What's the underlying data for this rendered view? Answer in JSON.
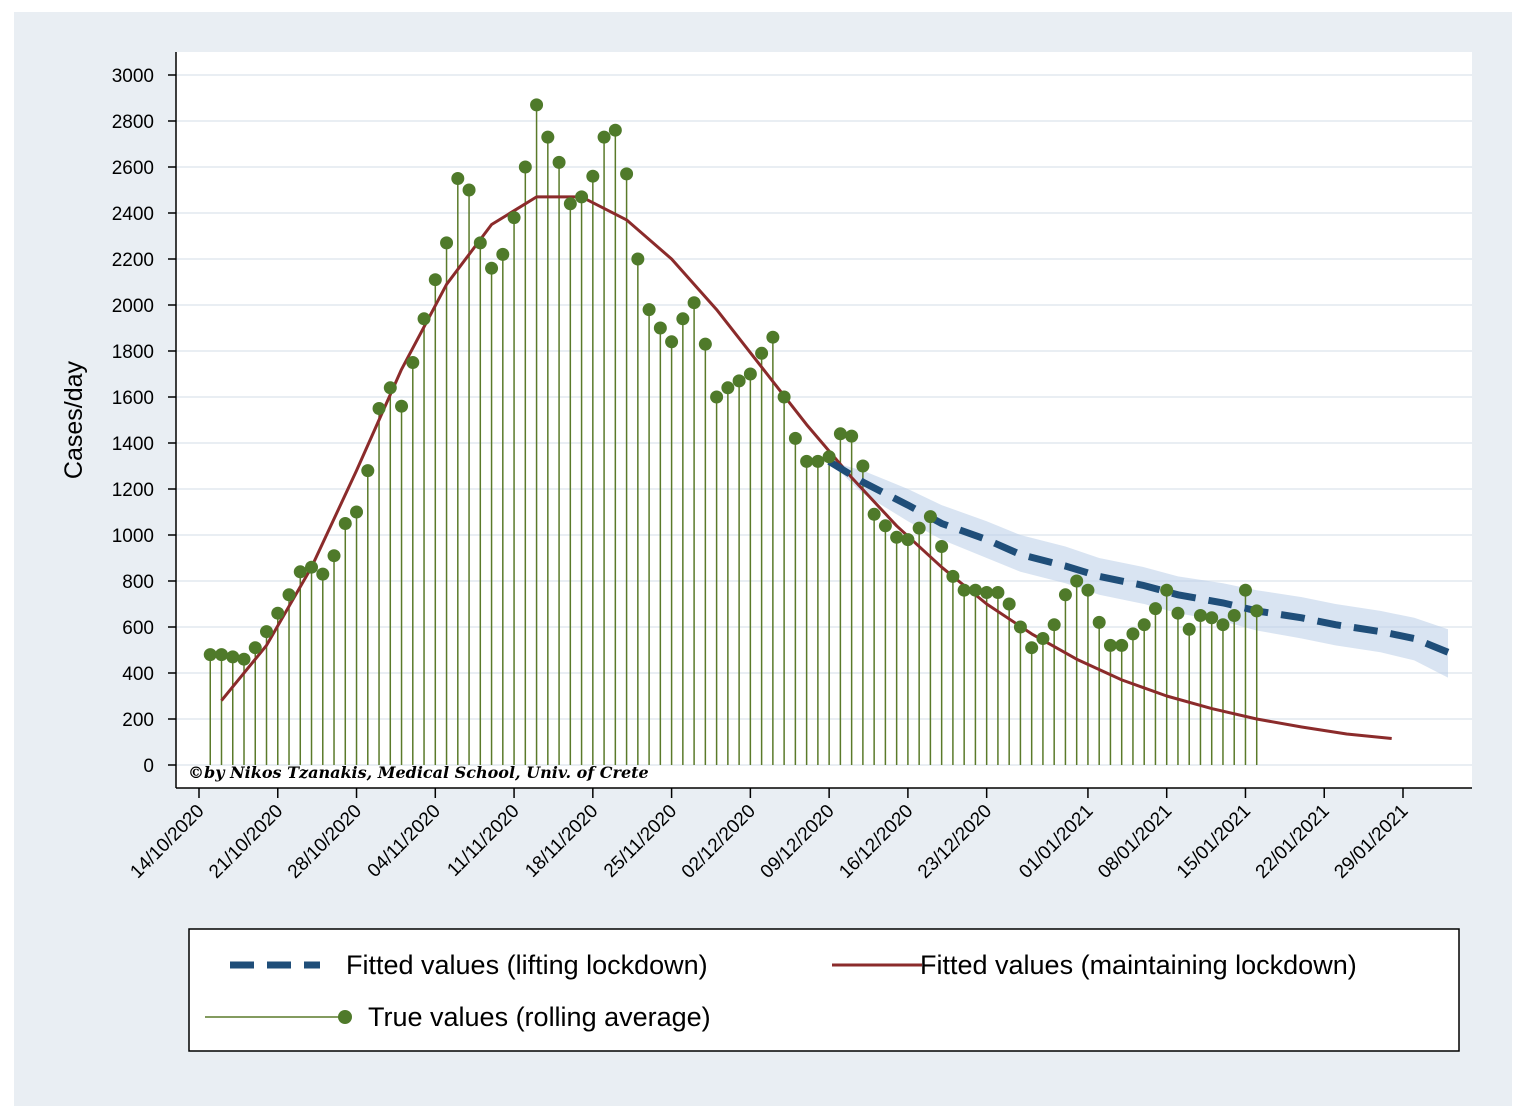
{
  "chart_data": {
    "type": "line",
    "title": "",
    "xlabel": "",
    "ylabel": "Cases/day",
    "ylim": [
      0,
      3000
    ],
    "yticks": [
      0,
      200,
      400,
      600,
      800,
      1000,
      1200,
      1400,
      1600,
      1800,
      2000,
      2200,
      2400,
      2600,
      2800,
      3000
    ],
    "xlim": [
      "2020-10-14",
      "2021-02-02"
    ],
    "xtick_dates": [
      "2020-10-14",
      "2020-10-21",
      "2020-10-28",
      "2020-11-04",
      "2020-11-11",
      "2020-11-18",
      "2020-11-25",
      "2020-12-02",
      "2020-12-09",
      "2020-12-16",
      "2020-12-23",
      "2021-01-01",
      "2021-01-08",
      "2021-01-15",
      "2021-01-22",
      "2021-01-29"
    ],
    "xtick_labels": [
      "14/10/2020",
      "21/10/2020",
      "28/10/2020",
      "04/11/2020",
      "11/11/2020",
      "18/11/2020",
      "25/11/2020",
      "02/12/2020",
      "09/12/2020",
      "16/12/2020",
      "23/12/2020",
      "01/01/2021",
      "08/01/2021",
      "15/01/2021",
      "22/01/2021",
      "29/01/2021"
    ],
    "grid": true,
    "legend_position": "bottom",
    "credit": "©by Nikos Tzanakis, Medical School, Univ. of Crete",
    "series": [
      {
        "name": "Fitted values (lifting lockdown)",
        "type": "line",
        "style": "dashed",
        "color": "#1f4e79",
        "band_color": "#b9cde8",
        "x": [
          "2020-12-09",
          "2020-12-12",
          "2020-12-16",
          "2020-12-19",
          "2020-12-23",
          "2020-12-26",
          "2020-12-30",
          "2021-01-02",
          "2021-01-06",
          "2021-01-09",
          "2021-01-13",
          "2021-01-16",
          "2021-01-20",
          "2021-01-23",
          "2021-01-27",
          "2021-01-30",
          "2021-02-02"
        ],
        "y": [
          1320,
          1230,
          1130,
          1050,
          980,
          915,
          865,
          820,
          780,
          740,
          705,
          670,
          640,
          610,
          580,
          550,
          490
        ],
        "ci_upper": [
          1320,
          1280,
          1200,
          1130,
          1060,
          1000,
          950,
          900,
          860,
          820,
          790,
          760,
          730,
          700,
          670,
          640,
          590
        ],
        "ci_lower": [
          1320,
          1180,
          1060,
          980,
          900,
          840,
          790,
          740,
          700,
          660,
          625,
          585,
          550,
          520,
          490,
          455,
          380
        ]
      },
      {
        "name": "Fitted values (maintaining lockdown)",
        "type": "line",
        "style": "solid",
        "color": "#8b2b2b",
        "x": [
          "2020-10-16",
          "2020-10-20",
          "2020-10-24",
          "2020-10-28",
          "2020-11-01",
          "2020-11-05",
          "2020-11-09",
          "2020-11-13",
          "2020-11-17",
          "2020-11-21",
          "2020-11-25",
          "2020-11-29",
          "2020-12-03",
          "2020-12-07",
          "2020-12-11",
          "2020-12-15",
          "2020-12-19",
          "2020-12-23",
          "2020-12-27",
          "2020-12-31",
          "2021-01-04",
          "2021-01-08",
          "2021-01-12",
          "2021-01-16",
          "2021-01-20",
          "2021-01-24",
          "2021-01-28"
        ],
        "y": [
          280,
          520,
          860,
          1280,
          1720,
          2090,
          2350,
          2470,
          2470,
          2370,
          2200,
          1980,
          1730,
          1480,
          1250,
          1040,
          860,
          700,
          570,
          460,
          370,
          300,
          245,
          200,
          165,
          135,
          115
        ]
      },
      {
        "name": "True values (rolling average)",
        "type": "stem",
        "color": "#5a7a2a",
        "marker_color": "#4f7a2a",
        "x": [
          "2020-10-15",
          "2020-10-16",
          "2020-10-17",
          "2020-10-18",
          "2020-10-19",
          "2020-10-20",
          "2020-10-21",
          "2020-10-22",
          "2020-10-23",
          "2020-10-24",
          "2020-10-25",
          "2020-10-26",
          "2020-10-27",
          "2020-10-28",
          "2020-10-29",
          "2020-10-30",
          "2020-10-31",
          "2020-11-01",
          "2020-11-02",
          "2020-11-03",
          "2020-11-04",
          "2020-11-05",
          "2020-11-06",
          "2020-11-07",
          "2020-11-08",
          "2020-11-09",
          "2020-11-10",
          "2020-11-11",
          "2020-11-12",
          "2020-11-13",
          "2020-11-14",
          "2020-11-15",
          "2020-11-16",
          "2020-11-17",
          "2020-11-18",
          "2020-11-19",
          "2020-11-20",
          "2020-11-21",
          "2020-11-22",
          "2020-11-23",
          "2020-11-24",
          "2020-11-25",
          "2020-11-26",
          "2020-11-27",
          "2020-11-28",
          "2020-11-29",
          "2020-11-30",
          "2020-12-01",
          "2020-12-02",
          "2020-12-03",
          "2020-12-04",
          "2020-12-05",
          "2020-12-06",
          "2020-12-07",
          "2020-12-08",
          "2020-12-09",
          "2020-12-10",
          "2020-12-11",
          "2020-12-12",
          "2020-12-13",
          "2020-12-14",
          "2020-12-15",
          "2020-12-16",
          "2020-12-17",
          "2020-12-18",
          "2020-12-19",
          "2020-12-20",
          "2020-12-21",
          "2020-12-22",
          "2020-12-23",
          "2020-12-24",
          "2020-12-25",
          "2020-12-26",
          "2020-12-27",
          "2020-12-28",
          "2020-12-29",
          "2020-12-30",
          "2020-12-31",
          "2021-01-01",
          "2021-01-02",
          "2021-01-03",
          "2021-01-04",
          "2021-01-05",
          "2021-01-06",
          "2021-01-07",
          "2021-01-08",
          "2021-01-09",
          "2021-01-10",
          "2021-01-11",
          "2021-01-12",
          "2021-01-13",
          "2021-01-14",
          "2021-01-15",
          "2021-01-16"
        ],
        "y": [
          480,
          480,
          470,
          460,
          510,
          580,
          660,
          740,
          840,
          860,
          830,
          910,
          1050,
          1100,
          1280,
          1550,
          1640,
          1560,
          1750,
          1940,
          2110,
          2270,
          2550,
          2500,
          2270,
          2160,
          2220,
          2380,
          2600,
          2870,
          2730,
          2620,
          2440,
          2470,
          2560,
          2730,
          2760,
          2570,
          2200,
          1980,
          1900,
          1840,
          1940,
          2010,
          1830,
          1600,
          1640,
          1670,
          1700,
          1790,
          1860,
          1600,
          1420,
          1320,
          1320,
          1340,
          1440,
          1430,
          1300,
          1090,
          1040,
          990,
          980,
          1030,
          1080,
          950,
          820,
          760,
          760,
          750,
          750,
          700,
          600,
          510,
          550,
          610,
          740,
          800,
          760,
          620,
          520,
          520,
          570,
          610,
          680,
          760,
          660,
          590,
          650,
          640,
          610,
          650,
          760,
          670
        ]
      }
    ]
  },
  "legend": {
    "lifting": "Fitted values (lifting lockdown)",
    "maintaining": "Fitted values (maintaining lockdown)",
    "true": "True values (rolling average)"
  }
}
